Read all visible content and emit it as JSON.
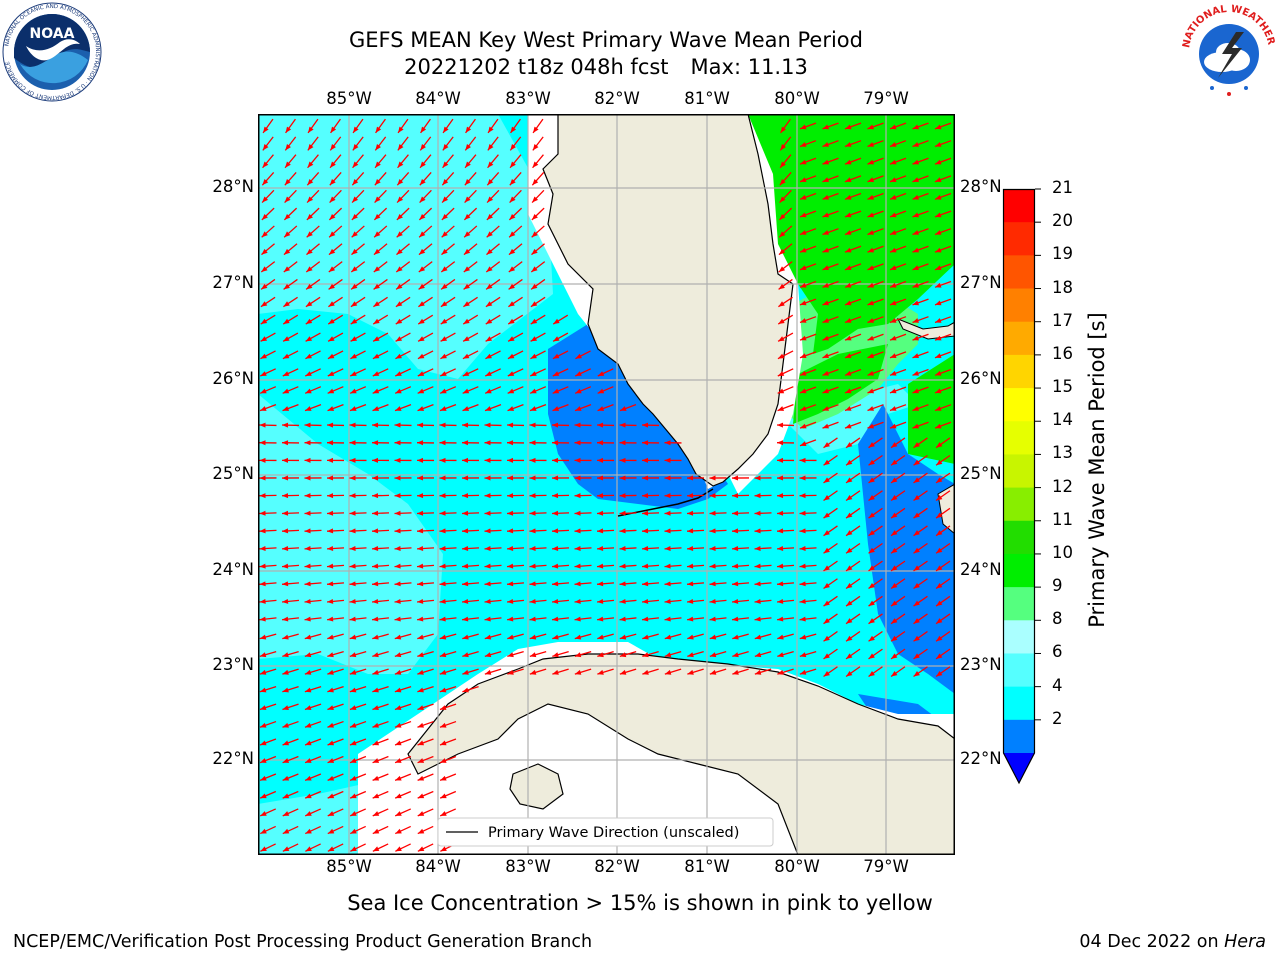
{
  "header": {
    "title_line1": "GEFS MEAN Key West Primary Wave Mean Period",
    "title_line2_a": "20221202 t18z 048h fcst",
    "title_line2_b": "Max: 11.13"
  },
  "logos": {
    "noaa": {
      "icon": "noaa-logo-icon",
      "text": "NOAA",
      "ring_text": "NATIONAL OCEANIC AND ATMOSPHERIC ADMINISTRATION · U.S. DEPARTMENT OF COMMERCE"
    },
    "nws": {
      "icon": "nws-logo-icon",
      "ring_text": "NATIONAL WEATHER SERVICE"
    }
  },
  "map": {
    "lon_labels": [
      "85°W",
      "84°W",
      "83°W",
      "82°W",
      "81°W",
      "80°W",
      "79°W"
    ],
    "lat_labels": [
      "28°N",
      "27°N",
      "26°N",
      "25°N",
      "24°N",
      "23°N",
      "22°N"
    ],
    "legend_label": "Primary Wave Direction (unscaled)",
    "colors": {
      "land": "#eeecdc",
      "gridline": "#b0b0b0",
      "arrow": "#ff0000",
      "coast": "#000000"
    }
  },
  "colorbar": {
    "title": "Primary Wave Mean Period [s]",
    "ticks": [
      "21",
      "20",
      "19",
      "18",
      "17",
      "16",
      "15",
      "14",
      "13",
      "12",
      "11",
      "10",
      "9",
      "8",
      "6",
      "4",
      "2"
    ],
    "colors": [
      "#ff0000",
      "#ff2a00",
      "#ff5500",
      "#ff8000",
      "#ffaa00",
      "#ffd500",
      "#ffff00",
      "#e6ff00",
      "#c8f500",
      "#88ee00",
      "#22dd00",
      "#00ee00",
      "#55ff7f",
      "#aaffff",
      "#55ffff",
      "#00ffff",
      "#0080ff",
      "#0000ff"
    ]
  },
  "note": "Sea Ice Concentration > 15% is shown in pink to yellow",
  "footer": {
    "left": "NCEP/EMC/Verification Post Processing Product Generation Branch",
    "date": "04 Dec 2022 on",
    "machine": "Hera"
  }
}
